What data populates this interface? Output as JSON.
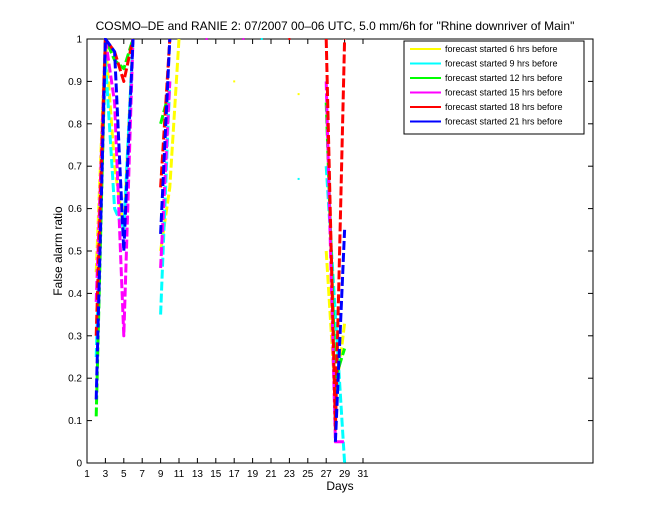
{
  "chart_data": {
    "type": "line",
    "title": "COSMO–DE and RANIE 2: 07/2007 00–06 UTC, 5.0 mm/6h for \"Rhine downriver of Main\"",
    "xlabel": "Days",
    "ylabel": "False alarm ratio",
    "xlim": [
      1,
      56
    ],
    "ylim": [
      0,
      1
    ],
    "xticks": [
      1,
      3,
      5,
      7,
      9,
      11,
      13,
      15,
      17,
      19,
      21,
      23,
      25,
      27,
      29,
      31
    ],
    "yticks": [
      0,
      0.1,
      0.2,
      0.3,
      0.4,
      0.5,
      0.6,
      0.7,
      0.8,
      0.9,
      1
    ],
    "ytick_labels": [
      "0",
      "0.1",
      "0.2",
      "0.3",
      "0.4",
      "0.5",
      "0.6",
      "0.7",
      "0.8",
      "0.9",
      "1"
    ],
    "grid": false,
    "legend_position": "top-right",
    "series": [
      {
        "name": "forecast started 6 hrs before",
        "color": "#ffff00",
        "segments": [
          [
            [
              2,
              0.45
            ],
            [
              3,
              1.0
            ],
            [
              4,
              0.7
            ],
            [
              5,
              0.55
            ],
            [
              6,
              1.0
            ]
          ],
          [
            [
              9,
              0.5
            ],
            [
              10,
              0.65
            ],
            [
              11,
              1.0
            ]
          ],
          [
            [
              27,
              0.5
            ],
            [
              28,
              0.15
            ],
            [
              29,
              0.33
            ]
          ]
        ],
        "dots": [
          [
            17,
            0.9
          ],
          [
            24,
            0.87
          ]
        ]
      },
      {
        "name": "forecast started 9 hrs before",
        "color": "#00ffff",
        "segments": [
          [
            [
              2,
              0.25
            ],
            [
              3,
              0.95
            ],
            [
              4,
              0.6
            ],
            [
              5,
              0.55
            ],
            [
              6,
              1.0
            ]
          ],
          [
            [
              9,
              0.35
            ],
            [
              10,
              0.9
            ]
          ],
          [
            [
              27,
              0.7
            ],
            [
              28,
              0.35
            ],
            [
              29,
              0.0
            ]
          ]
        ],
        "dots": [
          [
            20,
            1.0
          ],
          [
            24,
            0.67
          ]
        ]
      },
      {
        "name": "forecast started 12 hrs before",
        "color": "#00ff00",
        "segments": [
          [
            [
              2,
              0.11
            ],
            [
              3,
              1.0
            ],
            [
              4,
              0.95
            ],
            [
              5,
              0.93
            ],
            [
              6,
              1.0
            ]
          ],
          [
            [
              9,
              0.8
            ],
            [
              10,
              0.88
            ]
          ],
          [
            [
              27,
              0.85
            ],
            [
              28,
              0.2
            ],
            [
              29,
              0.27
            ]
          ]
        ],
        "dots": []
      },
      {
        "name": "forecast started 15 hrs before",
        "color": "#ff00ff",
        "segments": [
          [
            [
              2,
              0.38
            ],
            [
              3,
              1.0
            ],
            [
              4,
              0.85
            ],
            [
              5,
              0.3
            ],
            [
              6,
              1.0
            ]
          ],
          [
            [
              9,
              0.46
            ],
            [
              10,
              0.9
            ]
          ],
          [
            [
              27,
              0.9
            ],
            [
              28,
              0.05
            ],
            [
              29,
              0.05
            ]
          ]
        ],
        "dots": [
          [
            14,
            1.0
          ],
          [
            18,
            1.0
          ]
        ]
      },
      {
        "name": "forecast started 18 hrs before",
        "color": "#ff0000",
        "segments": [
          [
            [
              2,
              0.3
            ],
            [
              3,
              1.0
            ],
            [
              4,
              0.97
            ],
            [
              5,
              0.9
            ],
            [
              6,
              1.0
            ]
          ],
          [
            [
              9,
              0.65
            ],
            [
              10,
              1.0
            ]
          ],
          [
            [
              27,
              1.0
            ],
            [
              28,
              0.08
            ],
            [
              29,
              1.0
            ]
          ]
        ],
        "dots": [
          [
            23,
            1.0
          ]
        ]
      },
      {
        "name": "forecast started 21 hrs before",
        "color": "#0000ff",
        "segments": [
          [
            [
              2,
              0.15
            ],
            [
              3,
              1.0
            ],
            [
              4,
              0.97
            ],
            [
              5,
              0.5
            ],
            [
              6,
              1.0
            ]
          ],
          [
            [
              9,
              0.54
            ],
            [
              10,
              1.0
            ]
          ],
          [
            [
              28,
              0.05
            ],
            [
              29,
              0.55
            ]
          ]
        ],
        "dots": []
      }
    ]
  }
}
